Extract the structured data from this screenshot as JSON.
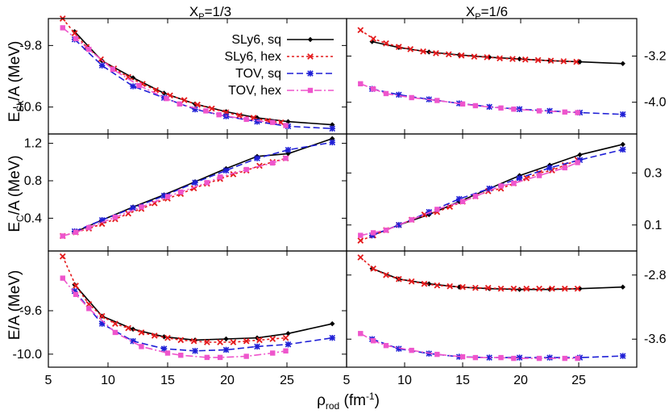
{
  "col_titles": [
    {
      "main": "X",
      "sub": "P",
      "rest": "=1/3"
    },
    {
      "main": "X",
      "sub": "P",
      "rest": "=1/6"
    }
  ],
  "row_ylabels": [
    {
      "main": "E",
      "sub": "Sk",
      "rest": "/A (MeV)"
    },
    {
      "main": "E",
      "sub": "C",
      "rest": "/A (MeV)"
    },
    {
      "main": "E/A (MeV)",
      "sub": "",
      "rest": ""
    }
  ],
  "xlabel": {
    "main": "ρ",
    "sub": "rod",
    "rest": " (fm",
    "sup": "-1",
    "end": ")"
  },
  "legend": [
    {
      "name": "SLy6, sq",
      "color": "#000000",
      "dash": "",
      "marker": "diamond"
    },
    {
      "name": "SLy6, hex",
      "color": "#e41a1c",
      "dash": "3,3",
      "marker": "x"
    },
    {
      "name": "TOV, sq",
      "color": "#1f1fd6",
      "dash": "8,4",
      "marker": "star"
    },
    {
      "name": "TOV, hex",
      "color": "#ee55cc",
      "dash": "9,3,2,3",
      "marker": "square"
    }
  ],
  "chart_data": [
    {
      "type": "line",
      "panel": "top-left",
      "title": "XP=1/3",
      "ylabel": "ESk/A (MeV)",
      "xlim": [
        5,
        30
      ],
      "ylim": [
        -10.95,
        -9.45
      ],
      "ytick_side": "left",
      "xticks": [
        5,
        10,
        15,
        20,
        25
      ],
      "yticks": [
        -9.8,
        -10.6
      ],
      "series": [
        {
          "name": "SLy6, sq",
          "x": [
            7.2,
            9.5,
            12.1,
            14.7,
            17.3,
            19.9,
            22.5,
            25.1,
            28.8
          ],
          "y": [
            -9.62,
            -10.0,
            -10.22,
            -10.42,
            -10.56,
            -10.66,
            -10.74,
            -10.79,
            -10.83
          ]
        },
        {
          "name": "SLy6, hex",
          "x": [
            6.2,
            7.2,
            8.2,
            9.4,
            10.5,
            11.7,
            12.9,
            14.0,
            15.2,
            16.4,
            17.5,
            18.7,
            19.9,
            21.0,
            22.2,
            23.4,
            24.5
          ],
          "y": [
            -9.45,
            -9.64,
            -9.82,
            -9.98,
            -10.1,
            -10.21,
            -10.3,
            -10.38,
            -10.45,
            -10.51,
            -10.57,
            -10.62,
            -10.67,
            -10.71,
            -10.74,
            -10.78,
            -10.8
          ]
        },
        {
          "name": "TOV, sq",
          "x": [
            7.2,
            9.5,
            12.1,
            14.7,
            17.3,
            19.9,
            22.5,
            25.1,
            28.8
          ],
          "y": [
            -9.72,
            -10.06,
            -10.33,
            -10.48,
            -10.63,
            -10.72,
            -10.79,
            -10.85,
            -10.88
          ]
        },
        {
          "name": "TOV, hex",
          "x": [
            6.2,
            7.3,
            8.4,
            10.4,
            12.6,
            14.9,
            16.0,
            18.2,
            19.3,
            21.6,
            23.8,
            24.9
          ],
          "y": [
            -9.57,
            -9.71,
            -9.85,
            -10.11,
            -10.32,
            -10.49,
            -10.56,
            -10.65,
            -10.7,
            -10.76,
            -10.8,
            -10.84
          ]
        }
      ]
    },
    {
      "type": "line",
      "panel": "top-right",
      "title": "XP=1/6",
      "ylabel": "",
      "xlim": [
        5,
        30
      ],
      "ylim": [
        -4.55,
        -2.55
      ],
      "ytick_side": "right",
      "xticks": [
        5,
        10,
        15,
        20,
        25
      ],
      "yticks": [
        -3.2,
        -4.0
      ],
      "series": [
        {
          "name": "SLy6, sq",
          "x": [
            7.2,
            9.5,
            12.1,
            14.7,
            17.3,
            19.9,
            22.5,
            25.1,
            28.8
          ],
          "y": [
            -2.95,
            -3.05,
            -3.13,
            -3.18,
            -3.22,
            -3.25,
            -3.28,
            -3.3,
            -3.33
          ]
        },
        {
          "name": "SLy6, hex",
          "x": [
            6.2,
            7.3,
            8.4,
            9.5,
            10.5,
            11.6,
            12.7,
            13.8,
            14.9,
            16.0,
            17.1,
            18.2,
            19.3,
            20.4,
            21.5,
            22.6,
            23.7,
            24.8
          ],
          "y": [
            -2.75,
            -2.9,
            -2.98,
            -3.04,
            -3.08,
            -3.12,
            -3.15,
            -3.17,
            -3.19,
            -3.21,
            -3.22,
            -3.24,
            -3.25,
            -3.26,
            -3.27,
            -3.28,
            -3.29,
            -3.3
          ]
        },
        {
          "name": "TOV, sq",
          "x": [
            7.2,
            9.5,
            12.1,
            14.7,
            17.3,
            19.9,
            22.5,
            25.1,
            28.8
          ],
          "y": [
            -3.77,
            -3.87,
            -3.95,
            -4.02,
            -4.08,
            -4.12,
            -4.15,
            -4.18,
            -4.21
          ]
        },
        {
          "name": "TOV, hex",
          "x": [
            6.2,
            7.3,
            8.4,
            10.6,
            12.8,
            15.0,
            16.1,
            18.3,
            19.4,
            21.6,
            23.8,
            24.9
          ],
          "y": [
            -3.68,
            -3.77,
            -3.85,
            -3.92,
            -3.97,
            -4.03,
            -4.06,
            -4.1,
            -4.12,
            -4.15,
            -4.17,
            -4.18
          ]
        }
      ]
    },
    {
      "type": "line",
      "panel": "middle-left",
      "title": "",
      "ylabel": "EC/A (MeV)",
      "xlim": [
        5,
        30
      ],
      "ylim": [
        0.05,
        1.3
      ],
      "ytick_side": "left",
      "xticks": [
        5,
        10,
        15,
        20,
        25
      ],
      "yticks": [
        1.2,
        0.8,
        0.4
      ],
      "series": [
        {
          "name": "SLy6, sq",
          "x": [
            7.2,
            9.5,
            12.1,
            14.7,
            17.3,
            19.9,
            22.5,
            25.1,
            28.8
          ],
          "y": [
            0.25,
            0.38,
            0.52,
            0.65,
            0.79,
            0.93,
            1.06,
            1.09,
            1.25
          ]
        },
        {
          "name": "SLy6, hex",
          "x": [
            6.2,
            7.3,
            8.4,
            9.5,
            10.6,
            11.7,
            12.8,
            13.9,
            15.0,
            16.1,
            17.2,
            18.3,
            19.4,
            20.5,
            21.6,
            22.7,
            23.8,
            24.9
          ],
          "y": [
            0.21,
            0.25,
            0.29,
            0.34,
            0.39,
            0.45,
            0.5,
            0.56,
            0.61,
            0.66,
            0.72,
            0.77,
            0.82,
            0.87,
            0.91,
            0.96,
            1.0,
            1.04
          ]
        },
        {
          "name": "TOV, sq",
          "x": [
            7.2,
            9.5,
            12.1,
            14.7,
            17.3,
            19.9,
            22.5,
            25.1,
            28.8
          ],
          "y": [
            0.26,
            0.38,
            0.51,
            0.64,
            0.78,
            0.91,
            1.04,
            1.13,
            1.21
          ]
        },
        {
          "name": "TOV, hex",
          "x": [
            6.2,
            7.3,
            8.4,
            10.6,
            12.8,
            15.0,
            16.1,
            18.3,
            19.4,
            21.6,
            23.8,
            24.9
          ],
          "y": [
            0.21,
            0.25,
            0.3,
            0.41,
            0.52,
            0.63,
            0.68,
            0.78,
            0.84,
            0.92,
            0.99,
            1.04
          ]
        }
      ]
    },
    {
      "type": "line",
      "panel": "middle-right",
      "title": "",
      "ylabel": "",
      "xlim": [
        5,
        30
      ],
      "ylim": [
        0.0,
        0.45
      ],
      "ytick_side": "right",
      "xticks": [
        5,
        10,
        15,
        20,
        25
      ],
      "yticks": [
        0.3,
        0.1
      ],
      "series": [
        {
          "name": "SLy6, sq",
          "x": [
            7.2,
            9.5,
            12.1,
            14.7,
            17.3,
            19.9,
            22.5,
            25.1,
            28.8
          ],
          "y": [
            0.06,
            0.1,
            0.14,
            0.19,
            0.24,
            0.29,
            0.33,
            0.37,
            0.41
          ]
        },
        {
          "name": "SLy6, hex",
          "x": [
            6.2,
            7.3,
            8.4,
            9.5,
            10.6,
            11.7,
            12.8,
            13.9,
            15.0,
            16.1,
            17.2,
            18.3,
            19.4,
            20.5,
            21.6,
            22.7,
            23.8,
            24.9
          ],
          "y": [
            0.04,
            0.06,
            0.08,
            0.1,
            0.12,
            0.14,
            0.15,
            0.17,
            0.19,
            0.21,
            0.23,
            0.24,
            0.26,
            0.28,
            0.3,
            0.31,
            0.33,
            0.35
          ]
        },
        {
          "name": "TOV, sq",
          "x": [
            7.2,
            9.5,
            12.1,
            14.7,
            17.3,
            19.9,
            22.5,
            25.1,
            28.8
          ],
          "y": [
            0.06,
            0.1,
            0.15,
            0.2,
            0.24,
            0.28,
            0.32,
            0.35,
            0.39
          ]
        },
        {
          "name": "TOV, hex",
          "x": [
            6.2,
            7.3,
            8.4,
            10.6,
            12.8,
            15.0,
            16.1,
            18.3,
            19.4,
            21.6,
            23.8,
            24.9
          ],
          "y": [
            0.06,
            0.07,
            0.08,
            0.12,
            0.16,
            0.19,
            0.21,
            0.25,
            0.26,
            0.29,
            0.32,
            0.34
          ]
        }
      ]
    },
    {
      "type": "line",
      "panel": "bottom-left",
      "title": "",
      "ylabel": "E/A (MeV)",
      "xlim": [
        5,
        30
      ],
      "ylim": [
        -10.12,
        -9.05
      ],
      "ytick_side": "left",
      "xticks": [
        5,
        10,
        15,
        20,
        25
      ],
      "yticks": [
        -9.6,
        -10.0
      ],
      "series": [
        {
          "name": "SLy6, sq",
          "x": [
            7.2,
            9.5,
            12.1,
            14.7,
            17.3,
            19.9,
            22.5,
            25.1,
            28.8
          ],
          "y": [
            -9.36,
            -9.65,
            -9.77,
            -9.84,
            -9.87,
            -9.86,
            -9.85,
            -9.81,
            -9.72
          ]
        },
        {
          "name": "SLy6, hex",
          "x": [
            6.2,
            7.3,
            8.4,
            9.5,
            10.6,
            11.7,
            12.8,
            13.9,
            15.0,
            16.1,
            17.2,
            18.3,
            19.4,
            20.5,
            21.6,
            22.7,
            23.8,
            24.9
          ],
          "y": [
            -9.1,
            -9.37,
            -9.54,
            -9.65,
            -9.72,
            -9.76,
            -9.8,
            -9.83,
            -9.85,
            -9.87,
            -9.88,
            -9.89,
            -9.89,
            -9.89,
            -9.88,
            -9.87,
            -9.86,
            -9.85
          ]
        },
        {
          "name": "TOV, sq",
          "x": [
            7.2,
            9.5,
            12.1,
            14.7,
            17.3,
            19.9,
            22.5,
            25.1,
            28.8
          ],
          "y": [
            -9.42,
            -9.72,
            -9.88,
            -9.95,
            -9.97,
            -9.96,
            -9.93,
            -9.91,
            -9.85
          ]
        },
        {
          "name": "TOV, hex",
          "x": [
            6.2,
            7.3,
            8.4,
            10.6,
            12.8,
            15.0,
            16.1,
            18.3,
            19.4,
            21.6,
            23.8,
            24.9
          ],
          "y": [
            -9.3,
            -9.45,
            -9.58,
            -9.8,
            -9.93,
            -9.99,
            -10.01,
            -10.03,
            -10.03,
            -10.02,
            -9.99,
            -9.97
          ]
        }
      ]
    },
    {
      "type": "line",
      "panel": "bottom-right",
      "title": "",
      "ylabel": "",
      "xlim": [
        5,
        30
      ],
      "ylim": [
        -3.95,
        -2.5
      ],
      "ytick_side": "right",
      "xticks": [
        5,
        10,
        15,
        20,
        25
      ],
      "yticks": [
        -2.8,
        -3.6
      ],
      "series": [
        {
          "name": "SLy6, sq",
          "x": [
            7.2,
            9.5,
            12.1,
            14.7,
            17.3,
            19.9,
            22.5,
            25.1,
            28.8
          ],
          "y": [
            -2.72,
            -2.85,
            -2.91,
            -2.95,
            -2.97,
            -2.98,
            -2.98,
            -2.97,
            -2.95
          ]
        },
        {
          "name": "SLy6, hex",
          "x": [
            6.2,
            7.3,
            8.4,
            9.5,
            10.6,
            11.7,
            12.8,
            13.9,
            15.0,
            16.1,
            17.2,
            18.3,
            19.4,
            20.5,
            21.6,
            22.7,
            23.8,
            24.9
          ],
          "y": [
            -2.58,
            -2.72,
            -2.8,
            -2.85,
            -2.88,
            -2.91,
            -2.93,
            -2.94,
            -2.95,
            -2.96,
            -2.96,
            -2.97,
            -2.97,
            -2.97,
            -2.97,
            -2.97,
            -2.97,
            -2.97
          ]
        },
        {
          "name": "TOV, sq",
          "x": [
            7.2,
            9.5,
            12.1,
            14.7,
            17.3,
            19.9,
            22.5,
            25.1,
            28.8
          ],
          "y": [
            -3.6,
            -3.72,
            -3.78,
            -3.82,
            -3.83,
            -3.83,
            -3.83,
            -3.83,
            -3.81
          ]
        },
        {
          "name": "TOV, hex",
          "x": [
            6.2,
            7.3,
            8.4,
            10.6,
            12.8,
            15.0,
            16.1,
            18.3,
            19.4,
            21.6,
            23.8,
            24.9
          ],
          "y": [
            -3.53,
            -3.62,
            -3.68,
            -3.74,
            -3.79,
            -3.82,
            -3.83,
            -3.83,
            -3.84,
            -3.84,
            -3.84,
            -3.84
          ]
        }
      ]
    }
  ]
}
